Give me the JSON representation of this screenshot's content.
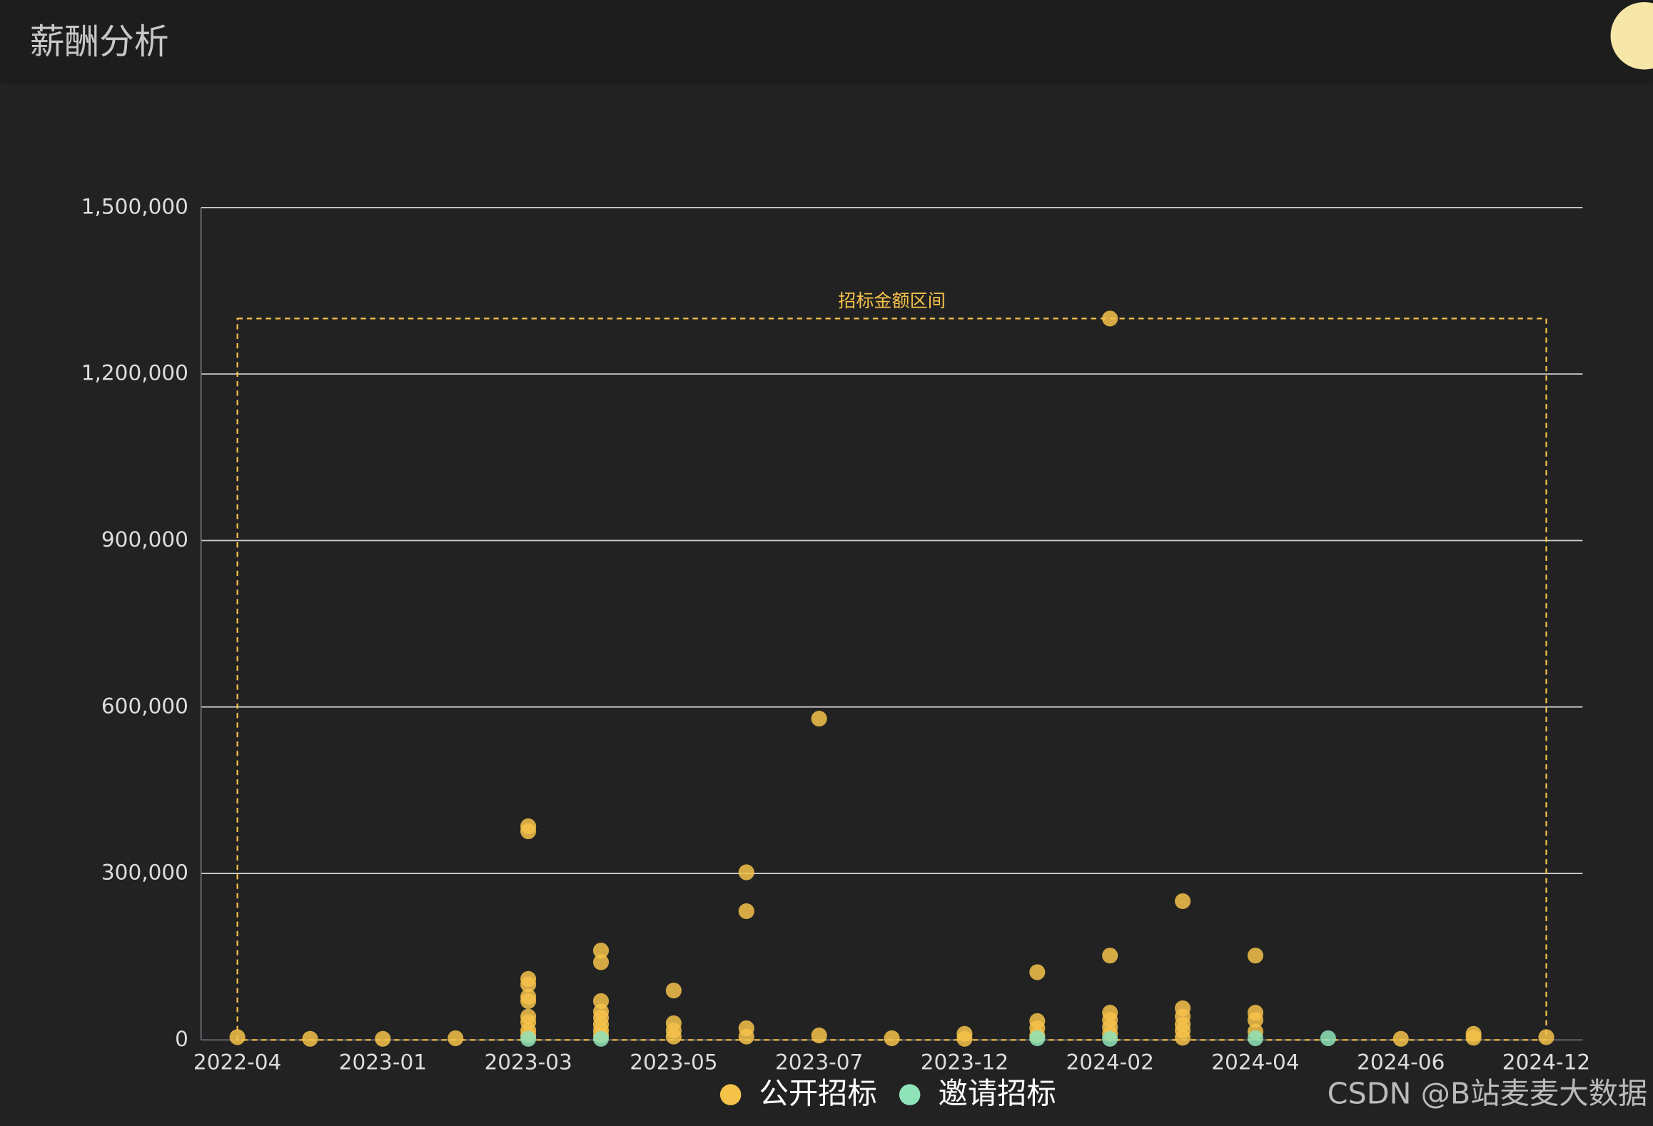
{
  "page_title": "薪酬分析",
  "watermark": "CSDN @B站麦麦大数据",
  "chart_data": {
    "type": "scatter",
    "categories": [
      "2022-04",
      null,
      "2023-01",
      null,
      "2023-03",
      null,
      "2023-05",
      null,
      "2023-07",
      null,
      "2023-12",
      null,
      "2024-02",
      null,
      "2024-04",
      null,
      "2024-06",
      null,
      "2024-12"
    ],
    "ylim": [
      0,
      1500000
    ],
    "yticks": [
      0,
      {
        "value": 300000,
        "label": "300,000"
      },
      {
        "value": 600000,
        "label": "600,000"
      },
      {
        "value": 900000,
        "label": "900,000"
      },
      {
        "value": 1200000,
        "label": "1,200,000"
      },
      {
        "value": 1500000,
        "label": "1,500,000"
      }
    ],
    "grid": true,
    "legend": "bottom",
    "series": [
      {
        "name": "公开招标",
        "color": "#f5c24a",
        "x": [
          0,
          1,
          2,
          3,
          4,
          4,
          4,
          4,
          4,
          4,
          4,
          4,
          4,
          4,
          5,
          5,
          5,
          5,
          5,
          5,
          5,
          5,
          6,
          6,
          6,
          6,
          7,
          7,
          7,
          7,
          8,
          8,
          9,
          10,
          10,
          11,
          11,
          11,
          11,
          12,
          12,
          12,
          12,
          12,
          12,
          13,
          13,
          13,
          13,
          13,
          13,
          14,
          14,
          14,
          14,
          16,
          17,
          17,
          18
        ],
        "values": [
          5000,
          2000,
          2000,
          3000,
          385000,
          376000,
          110000,
          100000,
          78000,
          70000,
          42000,
          32000,
          17000,
          8000,
          161000,
          140000,
          70000,
          51000,
          40000,
          28000,
          17000,
          8000,
          89000,
          30000,
          17000,
          6000,
          302000,
          232000,
          21000,
          6000,
          579000,
          8000,
          3000,
          11000,
          2000,
          122000,
          34000,
          21000,
          8000,
          1300000,
          152000,
          49000,
          36000,
          23000,
          11000,
          250000,
          57000,
          42000,
          28000,
          17000,
          4000,
          152000,
          49000,
          36000,
          15000,
          2000,
          11000,
          4000,
          5000
        ]
      },
      {
        "name": "邀请招标",
        "color": "#8fe3b9",
        "x": [
          4,
          5,
          11,
          12,
          14,
          15
        ],
        "values": [
          2000,
          2000,
          3000,
          2000,
          3000,
          3000
        ]
      }
    ],
    "mark_area": {
      "label": "招标金额区间",
      "color": "#f5c24a",
      "x": [
        0,
        18
      ],
      "y": [
        0,
        1300000
      ]
    }
  }
}
